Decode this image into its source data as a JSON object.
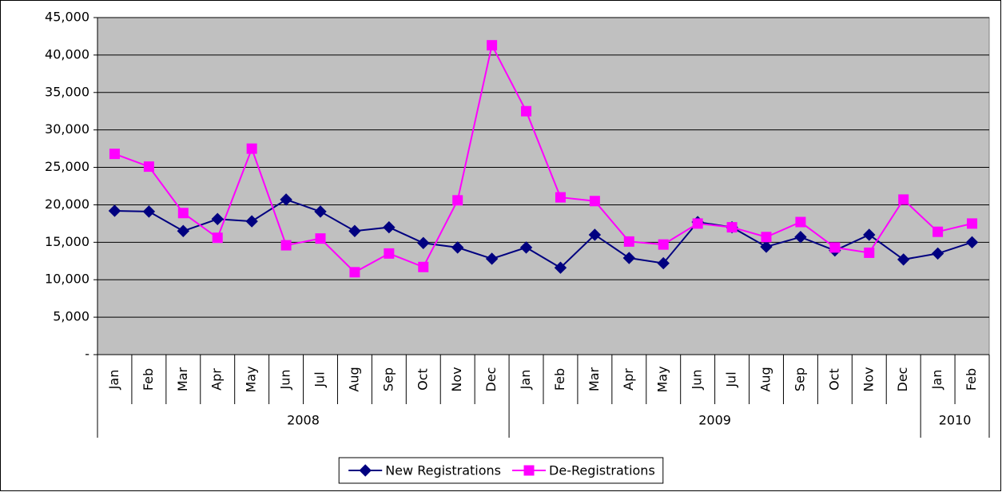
{
  "chart_data": {
    "type": "line",
    "categories": [
      "Jan",
      "Feb",
      "Mar",
      "Apr",
      "May",
      "Jun",
      "Jul",
      "Aug",
      "Sep",
      "Oct",
      "Nov",
      "Dec",
      "Jan",
      "Feb",
      "Mar",
      "Apr",
      "May",
      "Jun",
      "Jul",
      "Aug",
      "Sep",
      "Oct",
      "Nov",
      "Dec",
      "Jan",
      "Feb"
    ],
    "group_labels": [
      "2008",
      null,
      null,
      null,
      null,
      null,
      null,
      null,
      null,
      null,
      null,
      null,
      "2009",
      null,
      null,
      null,
      null,
      null,
      null,
      null,
      null,
      null,
      null,
      null,
      "2010",
      null
    ],
    "series": [
      {
        "name": "New Registrations",
        "color": "#000080",
        "marker": "diamond",
        "values": [
          19200,
          19100,
          16500,
          18100,
          17800,
          20700,
          19100,
          16500,
          17000,
          14900,
          14300,
          12800,
          14300,
          11600,
          16000,
          12900,
          12200,
          17700,
          17000,
          14400,
          15700,
          13900,
          16000,
          12700,
          13500,
          15000
        ]
      },
      {
        "name": "De-Registrations",
        "color": "#ff00ff",
        "marker": "square",
        "values": [
          26800,
          25100,
          18900,
          15600,
          27500,
          14600,
          15500,
          11000,
          13500,
          11700,
          20600,
          41300,
          32500,
          21000,
          20500,
          15100,
          14700,
          17500,
          17000,
          15700,
          17700,
          14300,
          13600,
          20700,
          16400,
          17500
        ]
      }
    ],
    "ylim": [
      0,
      45000
    ],
    "yticks": [
      {
        "value": 0,
        "label": "-"
      },
      {
        "value": 5000,
        "label": "5,000"
      },
      {
        "value": 10000,
        "label": "10,000"
      },
      {
        "value": 15000,
        "label": "15,000"
      },
      {
        "value": 20000,
        "label": "20,000"
      },
      {
        "value": 25000,
        "label": "25,000"
      },
      {
        "value": 30000,
        "label": "30,000"
      },
      {
        "value": 35000,
        "label": "35,000"
      },
      {
        "value": 40000,
        "label": "40,000"
      },
      {
        "value": 45000,
        "label": "45,000"
      }
    ],
    "grid": true,
    "plot_background": "#c0c0c0",
    "legend": "bottom"
  }
}
